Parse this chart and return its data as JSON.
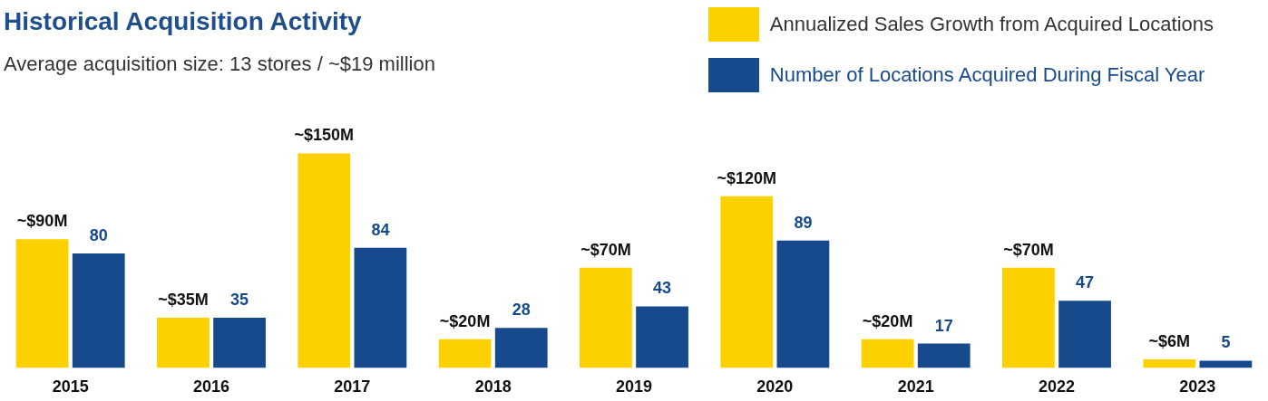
{
  "chart_data": {
    "type": "bar",
    "title": "Historical Acquisition Activity",
    "subtitle": "Average acquisition size: 13 stores / ~$19 million",
    "legend": "top right",
    "categories": [
      "2015",
      "2016",
      "2017",
      "2018",
      "2019",
      "2020",
      "2021",
      "2022",
      "2023"
    ],
    "series": [
      {
        "name": "Annualized Sales Growth from Acquired Locations",
        "color": "#fdd000",
        "values": [
          90,
          35,
          150,
          20,
          70,
          120,
          20,
          70,
          6
        ],
        "value_labels": [
          "~$90M",
          "~$35M",
          "~$150M",
          "~$20M",
          "~$70M",
          "~$120M",
          "~$20M",
          "~$70M",
          "~$6M"
        ]
      },
      {
        "name": "Number of Locations Acquired During Fiscal Year",
        "color": "#174a8c",
        "values": [
          80,
          35,
          84,
          28,
          43,
          89,
          17,
          47,
          5
        ],
        "value_labels": [
          "80",
          "35",
          "84",
          "28",
          "43",
          "89",
          "17",
          "47",
          "5"
        ]
      }
    ]
  }
}
